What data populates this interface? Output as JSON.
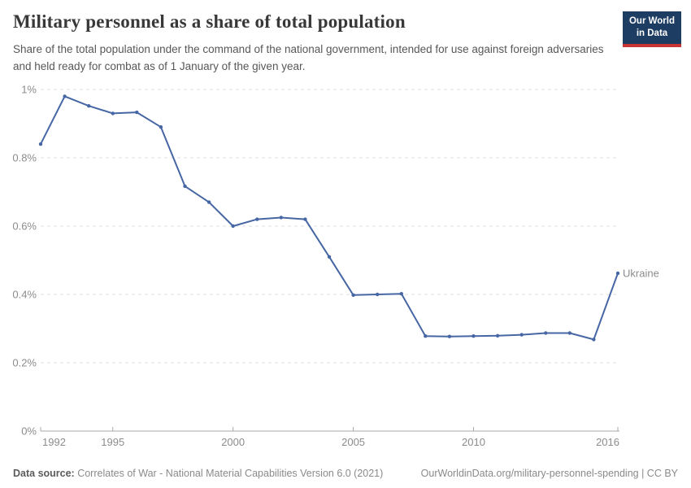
{
  "header": {
    "title": "Military personnel as a share of total population",
    "subtitle": "Share of the total population under the command of the national government, intended for use against foreign adversaries and held ready for combat as of 1 January of the given year.",
    "logo": {
      "line1": "Our World",
      "line2": "in Data",
      "bg_color": "#1d3d63",
      "bar_color": "#cb3434"
    }
  },
  "chart_data": {
    "type": "line",
    "title": "Military personnel as a share of total population",
    "xlabel": "",
    "ylabel": "",
    "xlim": [
      1992,
      2016
    ],
    "ylim": [
      0,
      1
    ],
    "grid": true,
    "x_ticks": [
      1992,
      1995,
      2000,
      2005,
      2010,
      2016
    ],
    "y_ticks": [
      {
        "value": 0,
        "label": "0%"
      },
      {
        "value": 0.2,
        "label": "0.2%"
      },
      {
        "value": 0.4,
        "label": "0.4%"
      },
      {
        "value": 0.6,
        "label": "0.6%"
      },
      {
        "value": 0.8,
        "label": "0.8%"
      },
      {
        "value": 1,
        "label": "1%"
      }
    ],
    "series": [
      {
        "name": "Ukraine",
        "color": "#4666a4",
        "label_color": "#5c7ba6",
        "x": [
          1992,
          1993,
          1994,
          1995,
          1996,
          1997,
          1998,
          1999,
          2000,
          2001,
          2002,
          2003,
          2004,
          2005,
          2006,
          2007,
          2008,
          2009,
          2010,
          2011,
          2012,
          2013,
          2014,
          2015,
          2016
        ],
        "values": [
          0.84,
          0.98,
          0.952,
          0.93,
          0.933,
          0.89,
          0.717,
          0.67,
          0.6,
          0.62,
          0.625,
          0.62,
          0.51,
          0.398,
          0.4,
          0.402,
          0.278,
          0.277,
          0.278,
          0.279,
          0.282,
          0.287,
          0.287,
          0.268,
          0.462
        ]
      }
    ],
    "legend_position": "end-of-line"
  },
  "footer": {
    "datasource_label": "Data source:",
    "datasource_text": " Correlates of War - National Material Capabilities Version 6.0 (2021)",
    "link_text": "OurWorldinData.org/military-personnel-spending | CC BY"
  },
  "colors": {
    "grid": "#dddddd",
    "axis": "#a8a8a8",
    "tick_label": "#8c8c8c"
  }
}
